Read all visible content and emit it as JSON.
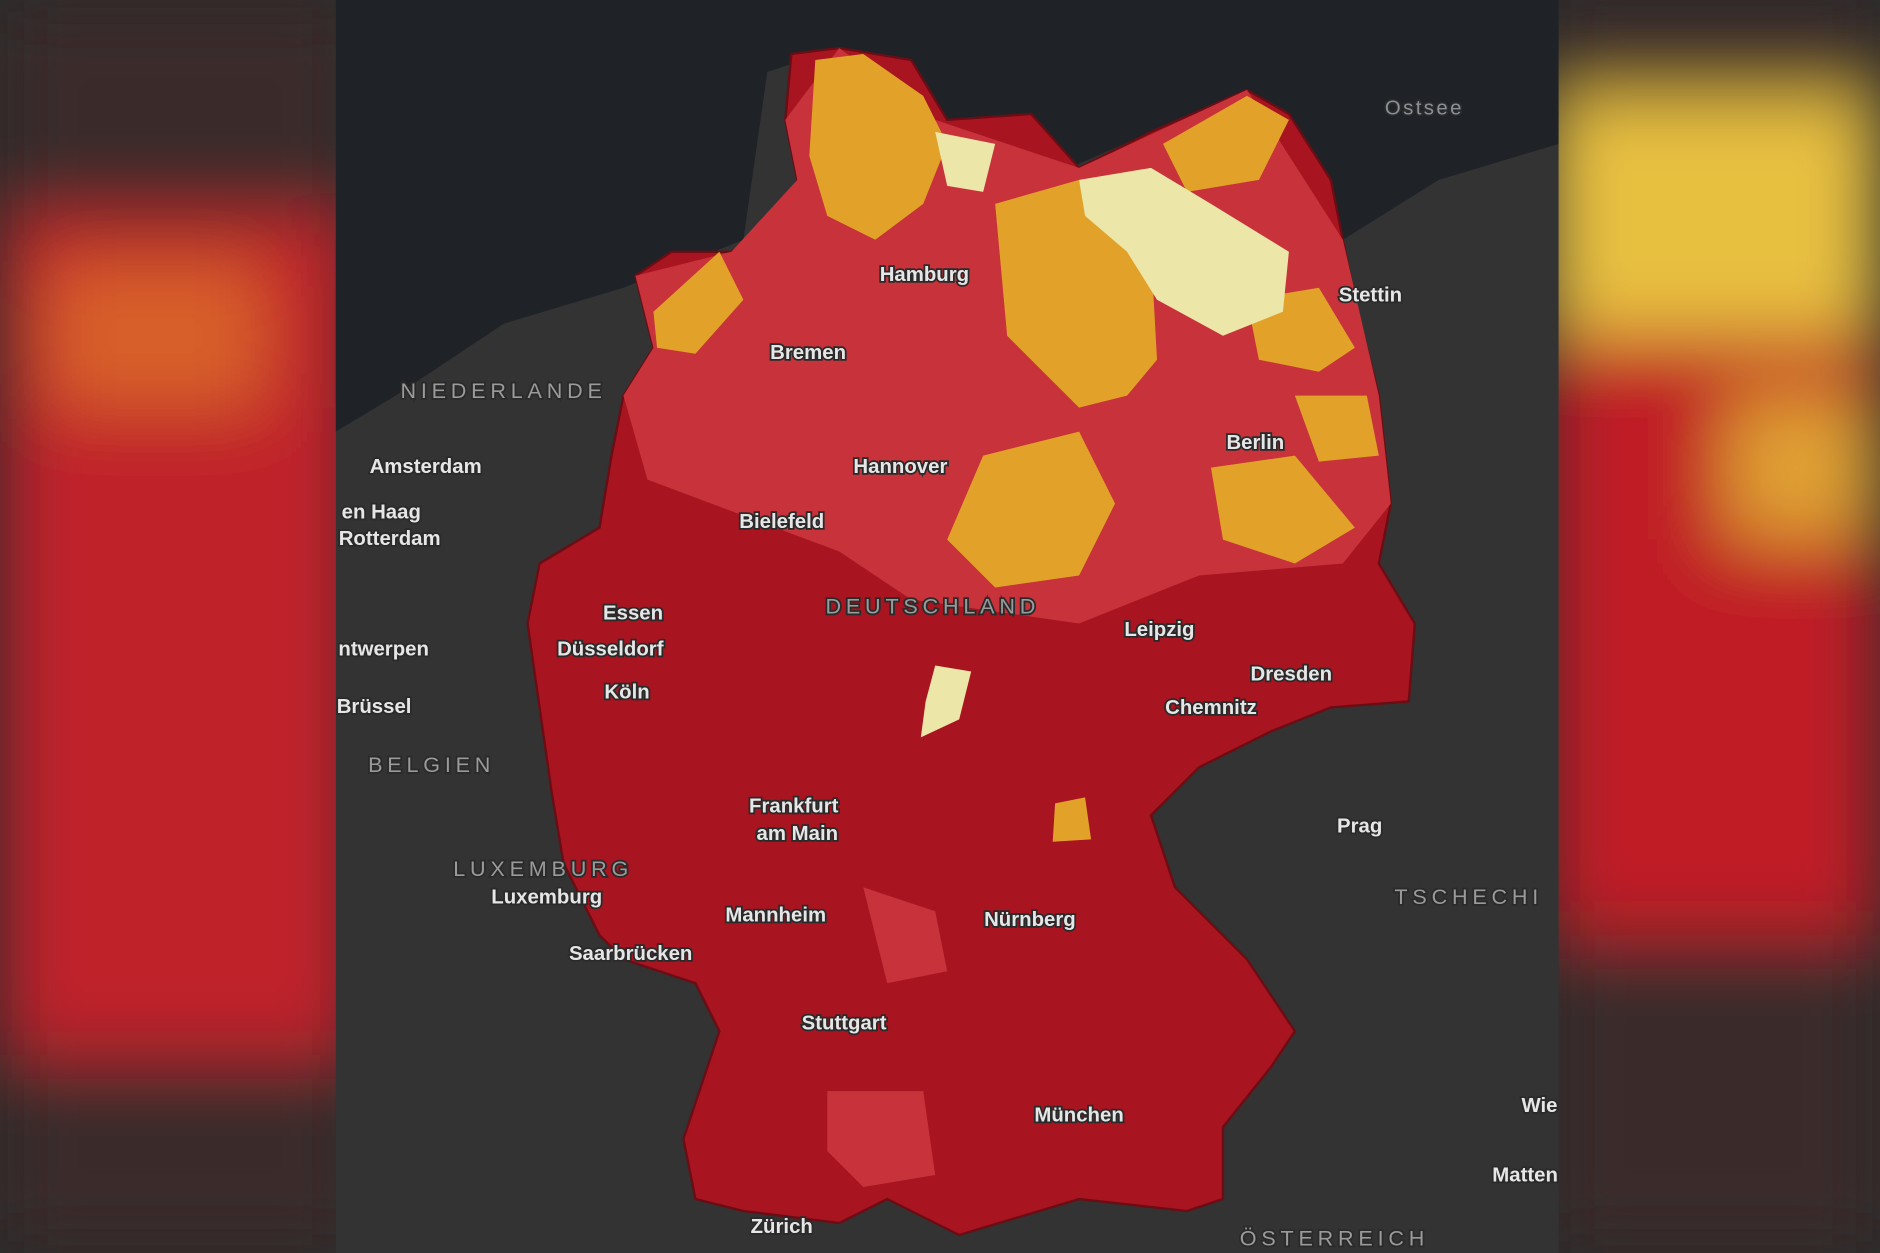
{
  "map": {
    "labels": [
      "Ostsee",
      "NIEDERLANDE",
      "Amsterdam",
      "en Haag",
      "Rotterdam",
      "ntwerpen",
      "Brüssel",
      "BELGIEN",
      "LUXEMBURG",
      "Luxemburg",
      "Saarbrücken",
      "Hamburg",
      "Bremen",
      "Hannover",
      "Bielefeld",
      "Essen",
      "Düsseldorf",
      "Köln",
      "DEUTSCHLAND",
      "Leipzig",
      "Dresden",
      "Chemnitz",
      "Berlin",
      "Stettin",
      "Frankfurt",
      "am Main",
      "Mannheim",
      "Nürnberg",
      "Stuttgart",
      "München",
      "Zürich",
      "Prag",
      "TSCHECHI",
      "Wie",
      "Matten",
      "ÖSTERREICH"
    ]
  }
}
